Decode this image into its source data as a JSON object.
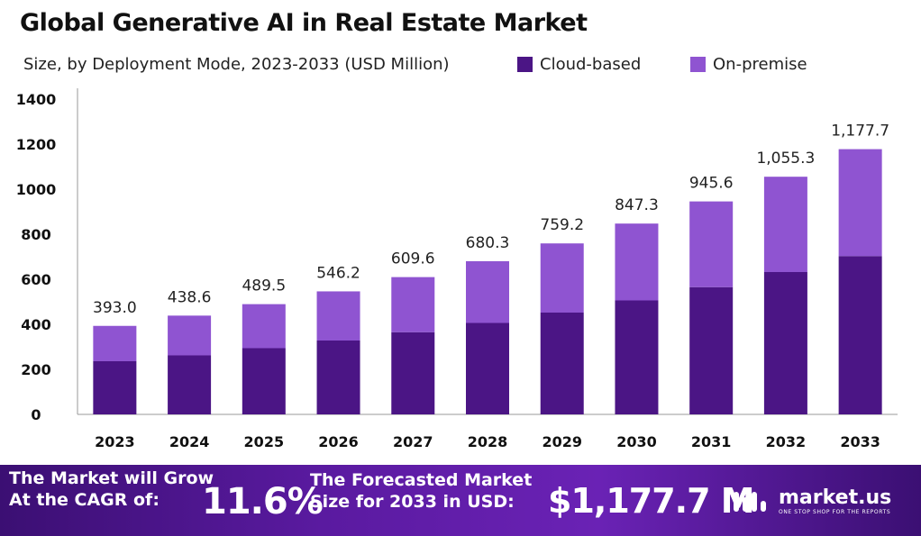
{
  "header": {
    "title": "Global Generative AI in Real Estate Market",
    "subtitle": "Size, by Deployment Mode, 2023-2033 (USD Million)"
  },
  "chart_data": {
    "type": "bar",
    "stacked": true,
    "categories": [
      "2023",
      "2024",
      "2025",
      "2026",
      "2027",
      "2028",
      "2029",
      "2030",
      "2031",
      "2032",
      "2033"
    ],
    "series": [
      {
        "name": "Cloud-based",
        "color": "#4b1585",
        "values": [
          236,
          262,
          294,
          328,
          365,
          406,
          452,
          506,
          565,
          632,
          703
        ]
      },
      {
        "name": "On-premise",
        "color": "#8f54d1",
        "values": [
          157,
          176.6,
          195.5,
          218.2,
          244.6,
          274.3,
          307.2,
          341.3,
          380.6,
          423.3,
          474.7
        ]
      }
    ],
    "totals": [
      393.0,
      438.6,
      489.5,
      546.2,
      609.6,
      680.3,
      759.2,
      847.3,
      945.6,
      1055.3,
      1177.7
    ],
    "total_labels": [
      "393.0",
      "438.6",
      "489.5",
      "546.2",
      "609.6",
      "680.3",
      "759.2",
      "847.3",
      "945.6",
      "1,055.3",
      "1,177.7"
    ],
    "ylim": [
      0,
      1400
    ],
    "yticks": [
      0,
      200,
      400,
      600,
      800,
      1000,
      1200,
      1400
    ],
    "grid": false,
    "legend_position": "top-right"
  },
  "footer": {
    "cagr_label": "The Market will Grow At the CAGR of:",
    "cagr_value": "11.6%",
    "size_label": "The Forecasted Market Size for 2033 in USD:",
    "size_value": "$1,177.7 M",
    "brand_name": "market.us",
    "brand_tagline": "ONE STOP SHOP FOR THE REPORTS",
    "brand_icon": "market-us-logo-icon"
  }
}
